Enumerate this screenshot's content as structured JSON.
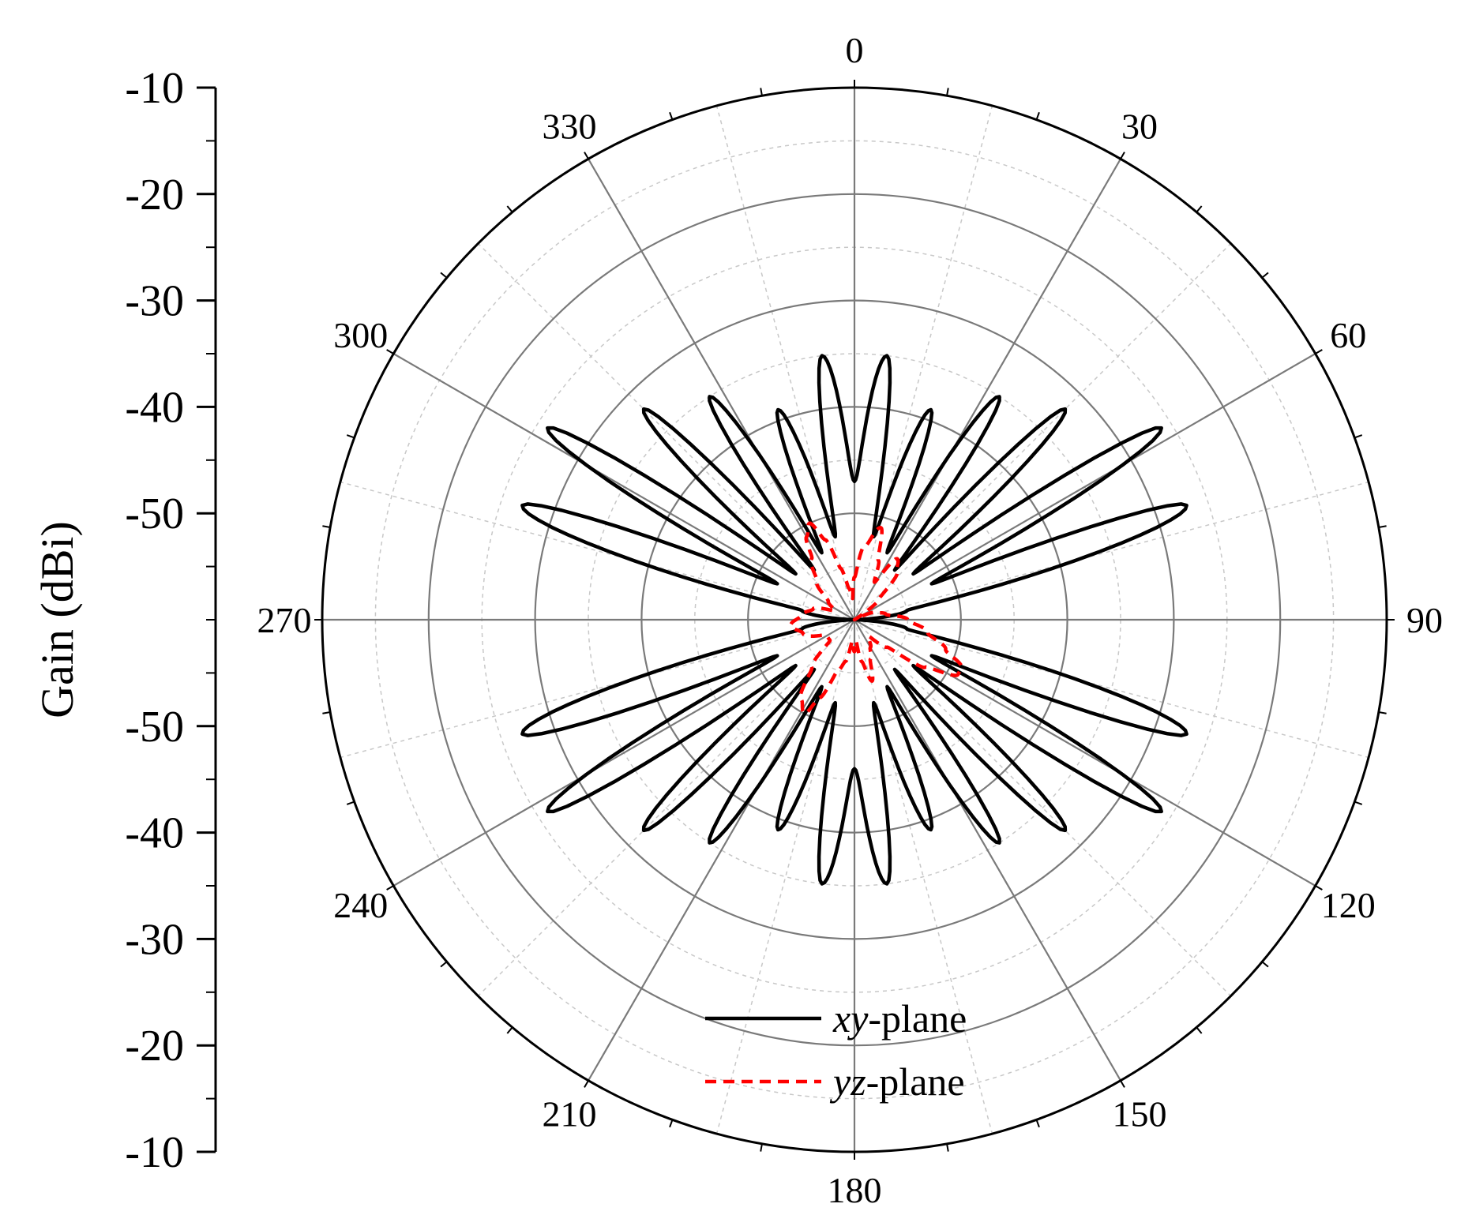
{
  "chart_data": {
    "type": "polar-line",
    "radial_axis": {
      "label": "Gain (dBi)",
      "range": [
        -60,
        -10
      ],
      "ticks": [
        -10,
        -20,
        -30,
        -40,
        -50
      ],
      "tick_labels": [
        "-10",
        "-20",
        "-30",
        "-40",
        "-50"
      ]
    },
    "angular_axis": {
      "unit": "degrees",
      "direction": "clockwise",
      "zero_at": "top",
      "ticks": [
        0,
        30,
        60,
        90,
        120,
        150,
        180,
        210,
        240,
        270,
        300,
        330
      ],
      "tick_labels": [
        "0",
        "30",
        "60",
        "90",
        "120",
        "150",
        "180",
        "210",
        "240",
        "270",
        "300",
        "330"
      ]
    },
    "grid": true,
    "legend": {
      "position": "bottom-center"
    },
    "series": [
      {
        "name_prefix": "xy",
        "name_suffix": "-plane",
        "color": "#000000",
        "style": "solid",
        "angles": [
          0,
          7,
          13,
          20,
          26,
          33,
          39,
          45,
          52,
          58,
          65,
          71,
          80,
          90,
          100,
          109,
          115,
          122,
          128,
          135,
          141,
          147,
          154,
          160,
          167,
          173,
          180,
          187,
          193,
          200,
          206,
          213,
          219,
          225,
          232,
          238,
          245,
          251,
          260,
          270,
          280,
          289,
          295,
          302,
          308,
          315,
          321,
          327,
          334,
          340,
          347,
          353,
          360
        ],
        "values": [
          -47,
          -35,
          -52,
          -39,
          -53,
          -35,
          -54,
          -32,
          -53,
          -26,
          -52,
          -27,
          -55,
          -60,
          -55,
          -27,
          -52,
          -26,
          -53,
          -32,
          -54,
          -35,
          -53,
          -39,
          -52,
          -35,
          -46,
          -35,
          -52,
          -39,
          -53,
          -35,
          -54,
          -32,
          -53,
          -26,
          -52,
          -27,
          -55,
          -60,
          -55,
          -27,
          -52,
          -26,
          -53,
          -32,
          -54,
          -35,
          -53,
          -39,
          -52,
          -35,
          -47
        ]
      },
      {
        "name_prefix": "yz",
        "name_suffix": "-plane",
        "color": "#ff0000",
        "style": "dashed",
        "angles": [
          0,
          8,
          16,
          22,
          28,
          35,
          42,
          50,
          60,
          70,
          80,
          90,
          100,
          108,
          114,
          118,
          124,
          130,
          140,
          150,
          158,
          164,
          170,
          176,
          180,
          186,
          192,
          198,
          204,
          208,
          214,
          222,
          230,
          240,
          255,
          265,
          275,
          285,
          295,
          305,
          315,
          325,
          330,
          335,
          340,
          345,
          350,
          355,
          360
        ],
        "values": [
          -56,
          -53,
          -51,
          -54,
          -56,
          -53,
          -54,
          -57,
          -60,
          -58,
          -57,
          -55,
          -53,
          -51,
          -49,
          -49,
          -52,
          -56,
          -58,
          -57,
          -56,
          -54,
          -56,
          -58,
          -57,
          -58,
          -56,
          -55,
          -52,
          -50,
          -51,
          -54,
          -57,
          -57,
          -55,
          -54,
          -55,
          -56,
          -58,
          -57,
          -55,
          -53,
          -51,
          -50,
          -52,
          -55,
          -57,
          -58,
          -56
        ]
      }
    ]
  }
}
